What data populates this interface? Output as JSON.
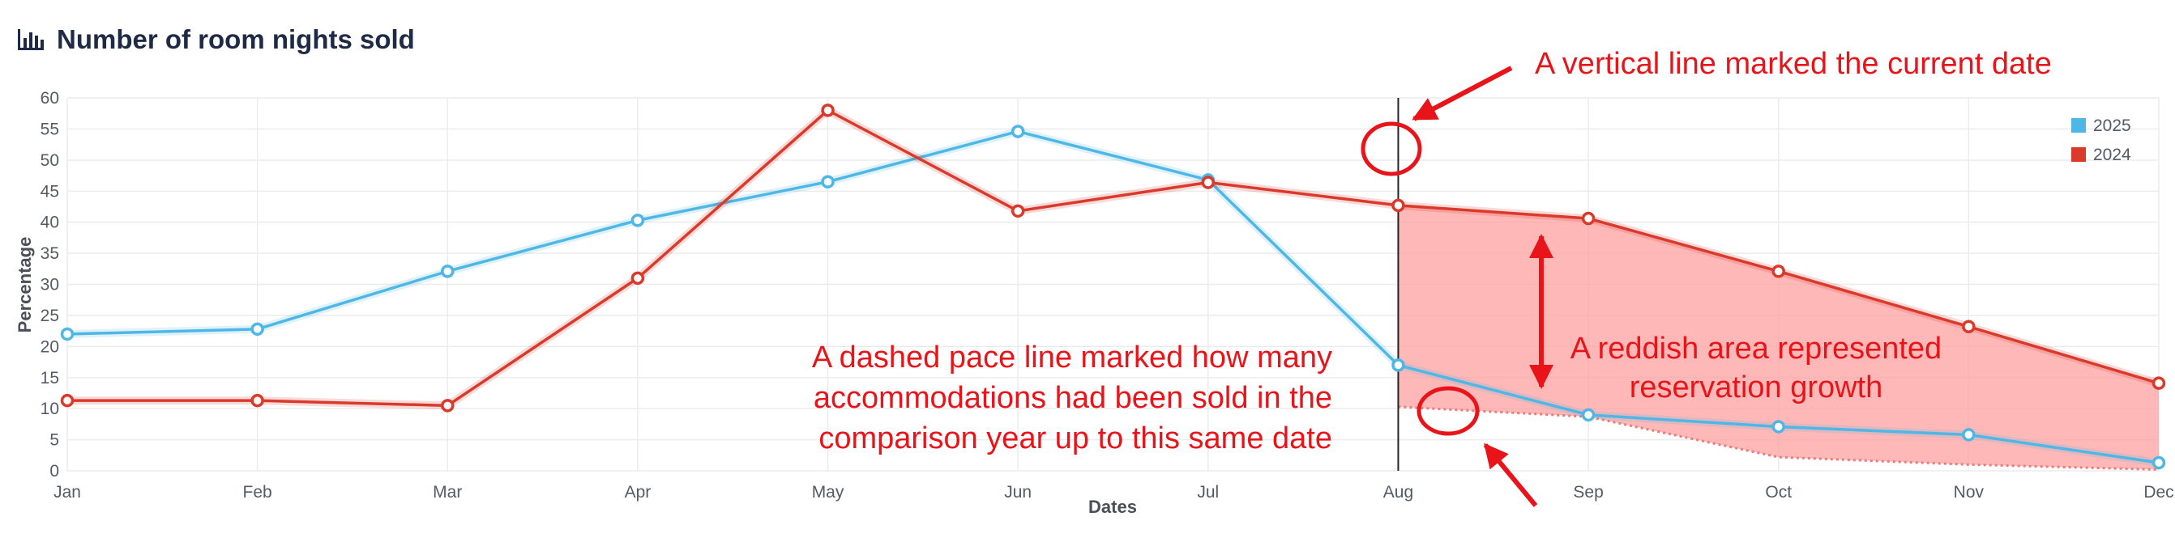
{
  "colors": {
    "series_2025": "#4fb7e6",
    "series_2024": "#d93a2b",
    "area_fill": "#ff9c9c",
    "annotation": "#e8141a",
    "grid": "#ececec",
    "title": "#1f2a44"
  },
  "header": {
    "icon": "bar-chart-icon"
  },
  "chart_data": {
    "type": "line",
    "title": "Number of room nights sold",
    "xlabel": "Dates",
    "ylabel": "Percentage",
    "categories": [
      "Jan",
      "Feb",
      "Mar",
      "Apr",
      "May",
      "Jun",
      "Jul",
      "Aug",
      "Sep",
      "Oct",
      "Nov",
      "Dec"
    ],
    "ylim": [
      0,
      60
    ],
    "yticks": [
      0,
      5,
      10,
      15,
      20,
      25,
      30,
      35,
      40,
      45,
      50,
      55,
      60
    ],
    "grid": true,
    "legend_position": "top-right",
    "series": [
      {
        "name": "2025",
        "values": [
          22,
          22.8,
          32.1,
          40.3,
          46.5,
          54.6,
          46.8,
          17,
          9,
          7.1,
          5.8,
          1.3
        ]
      },
      {
        "name": "2024",
        "values": [
          11.3,
          11.3,
          10.5,
          31,
          58,
          41.8,
          46.4,
          42.7,
          40.6,
          32.1,
          23.2,
          14.1
        ]
      }
    ],
    "pace_line": {
      "x": [
        "Aug",
        "Sep",
        "Oct",
        "Nov",
        "Dec"
      ],
      "values": [
        10.3,
        8.7,
        2.2,
        1,
        0.2
      ]
    },
    "current_date": "Aug",
    "annotations": [
      {
        "id": "current-date",
        "lines": [
          "A vertical line marked the current date"
        ]
      },
      {
        "id": "pace-line",
        "lines": [
          "A dashed pace line marked how many",
          "accommodations had been sold in the",
          "comparison year up to this same date"
        ]
      },
      {
        "id": "reservation-growth",
        "lines": [
          "A reddish area represented",
          "reservation growth"
        ]
      }
    ]
  }
}
